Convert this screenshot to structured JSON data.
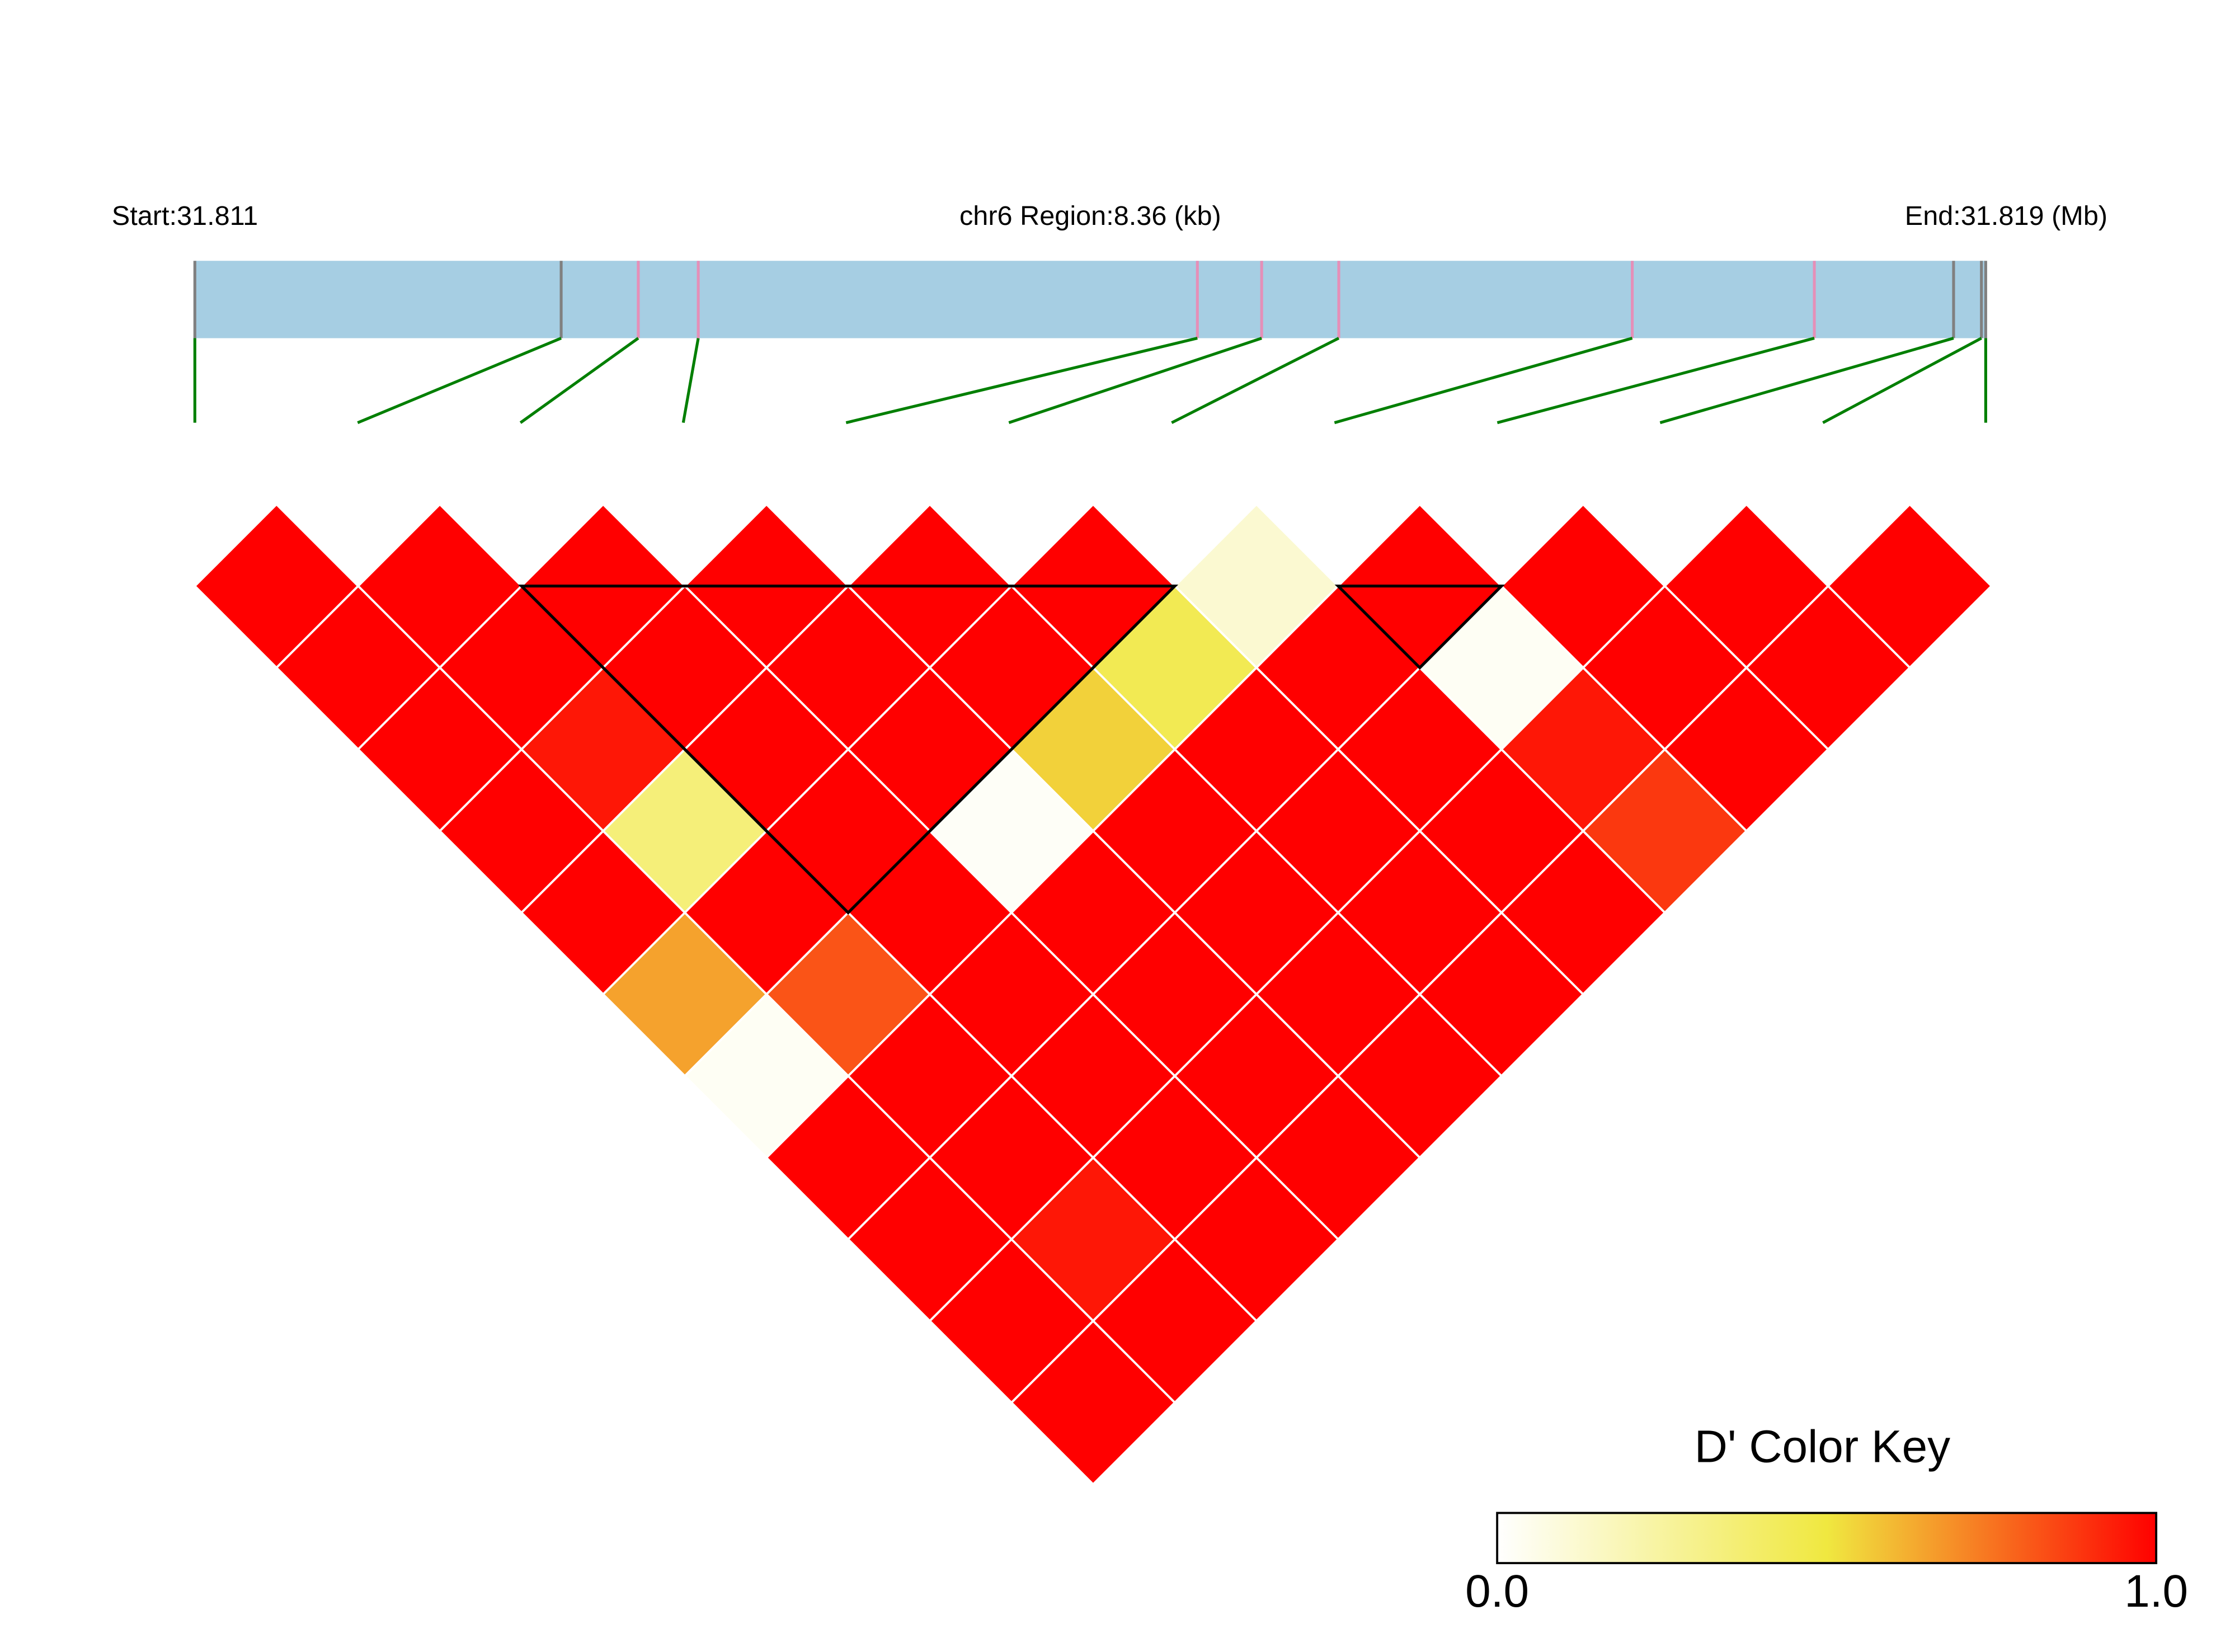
{
  "chart_data": {
    "type": "ld_heatmap",
    "start_label": "Start:31.811",
    "region_label": "chr6 Region:8.36 (kb)",
    "end_label": "End:31.819 (Mb)",
    "xlim": [
      0,
      8.36
    ],
    "snp_positions_kb": [
      0,
      1.71,
      2.07,
      2.35,
      4.68,
      4.98,
      5.34,
      6.71,
      7.56,
      8.21,
      8.34,
      8.36
    ],
    "marker_colors": [
      "#808080",
      "#808080",
      "#e58fb8",
      "#e58fb8",
      "#e58fb8",
      "#e58fb8",
      "#e58fb8",
      "#e58fb8",
      "#e58fb8",
      "#808080",
      "#808080",
      "#808080"
    ],
    "track_color": "#a6cee3",
    "connector_color": "#007f00",
    "values": [
      [
        1,
        1,
        1,
        1,
        1,
        1,
        0.12,
        1,
        1,
        1,
        1
      ],
      [
        1,
        1,
        1,
        1,
        1,
        0.45,
        1,
        0.03,
        1,
        1
      ],
      [
        1,
        0.95,
        1,
        1,
        0.55,
        1,
        1,
        0.95,
        1
      ],
      [
        1,
        0.35,
        1,
        0.02,
        1,
        1,
        1,
        0.88
      ],
      [
        1,
        1,
        1,
        1,
        1,
        1,
        1
      ],
      [
        0.65,
        0.82,
        1,
        1,
        1,
        1
      ],
      [
        0.03,
        1,
        1,
        1,
        1
      ],
      [
        1,
        1,
        1,
        1
      ],
      [
        1,
        0.95,
        1
      ],
      [
        1,
        1
      ],
      [
        1
      ]
    ],
    "blocks": [
      [
        2,
        6
      ],
      [
        7,
        8
      ]
    ],
    "colors": [
      "#ffffff",
      "#f0e840",
      "#ff0000"
    ],
    "colorbar_title": "D' Color Key",
    "colorbar_lim": [
      0,
      1
    ],
    "colorbar_ticks": [
      {
        "value": 0,
        "label": "0.0"
      },
      {
        "value": 1,
        "label": "1.0"
      }
    ]
  }
}
